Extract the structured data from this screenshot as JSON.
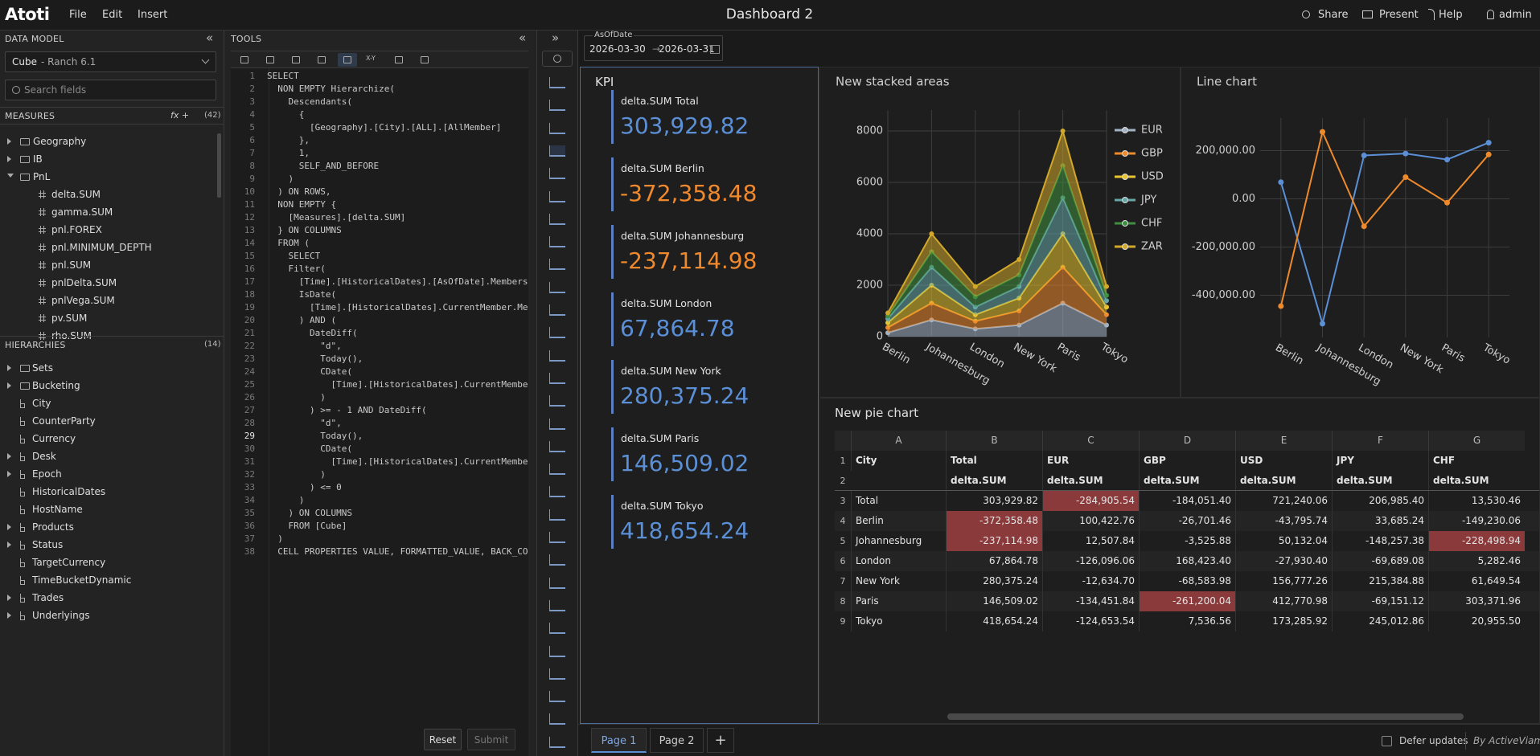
{
  "header": {
    "logo": "Atoti",
    "menu": [
      "File",
      "Edit",
      "Insert"
    ],
    "title": "Dashboard 2",
    "actions": [
      "Share",
      "Present",
      "Help",
      "admin"
    ]
  },
  "data_model": {
    "title": "DATA MODEL",
    "cube": "Cube",
    "cube_detail": "- Ranch 6.1",
    "search_placeholder": "Search fields",
    "measures_title": "MEASURES",
    "measures_fx": "fx +",
    "measures_count": "(42)",
    "measures": [
      {
        "label": "Geography",
        "kind": "folder",
        "level": 0,
        "caret": "closed"
      },
      {
        "label": "IB",
        "kind": "folder",
        "level": 0,
        "caret": "closed"
      },
      {
        "label": "PnL",
        "kind": "folder",
        "level": 0,
        "caret": "open"
      },
      {
        "label": "delta.SUM",
        "kind": "measure",
        "level": 1
      },
      {
        "label": "gamma.SUM",
        "kind": "measure",
        "level": 1
      },
      {
        "label": "pnl.FOREX",
        "kind": "measure",
        "level": 1
      },
      {
        "label": "pnl.MINIMUM_DEPTH",
        "kind": "measure",
        "level": 1
      },
      {
        "label": "pnl.SUM",
        "kind": "measure",
        "level": 1
      },
      {
        "label": "pnlDelta.SUM",
        "kind": "measure",
        "level": 1
      },
      {
        "label": "pnlVega.SUM",
        "kind": "measure",
        "level": 1
      },
      {
        "label": "pv.SUM",
        "kind": "measure",
        "level": 1
      },
      {
        "label": "rho.SUM",
        "kind": "measure",
        "level": 1
      }
    ],
    "hierarchies_title": "HIERARCHIES",
    "hierarchies_count": "(14)",
    "hierarchies": [
      {
        "label": "Sets",
        "kind": "folder",
        "caret": "closed"
      },
      {
        "label": "Bucketing",
        "kind": "folder",
        "caret": "closed"
      },
      {
        "label": "City",
        "kind": "hierarchy"
      },
      {
        "label": "CounterParty",
        "kind": "hierarchy"
      },
      {
        "label": "Currency",
        "kind": "hierarchy"
      },
      {
        "label": "Desk",
        "kind": "hierarchy",
        "caret": "closed"
      },
      {
        "label": "Epoch",
        "kind": "hierarchy",
        "caret": "closed"
      },
      {
        "label": "HistoricalDates",
        "kind": "hierarchy"
      },
      {
        "label": "HostName",
        "kind": "hierarchy"
      },
      {
        "label": "Products",
        "kind": "hierarchy",
        "caret": "closed"
      },
      {
        "label": "Status",
        "kind": "hierarchy",
        "caret": "closed"
      },
      {
        "label": "TargetCurrency",
        "kind": "hierarchy"
      },
      {
        "label": "TimeBucketDynamic",
        "kind": "hierarchy"
      },
      {
        "label": "Trades",
        "kind": "hierarchy",
        "caret": "closed"
      },
      {
        "label": "Underlyings",
        "kind": "hierarchy",
        "caret": "closed"
      }
    ]
  },
  "tools": {
    "title": "TOOLS",
    "toolbar_xy": "X-Y",
    "current_line": 29,
    "line_numbers": [
      1,
      2,
      3,
      4,
      5,
      6,
      7,
      8,
      9,
      10,
      11,
      12,
      13,
      14,
      15,
      16,
      17,
      18,
      19,
      20,
      21,
      22,
      23,
      24,
      25,
      26,
      27,
      28,
      29,
      30,
      31,
      32,
      33,
      34,
      35,
      36,
      37,
      38
    ],
    "code": [
      "SELECT",
      "  NON EMPTY Hierarchize(",
      "    Descendants(",
      "      {",
      "        [Geography].[City].[ALL].[AllMember]",
      "      },",
      "      1,",
      "      SELF_AND_BEFORE",
      "    )",
      "  ) ON ROWS,",
      "  NON EMPTY {",
      "    [Measures].[delta.SUM]",
      "  } ON COLUMNS",
      "  FROM (",
      "    SELECT",
      "    Filter(",
      "      [Time].[HistoricalDates].[AsOfDate].Members",
      "      IsDate(",
      "        [Time].[HistoricalDates].CurrentMember.Me",
      "      ) AND (",
      "        DateDiff(",
      "          \"d\",",
      "          Today(),",
      "          CDate(",
      "            [Time].[HistoricalDates].CurrentMembe",
      "          )",
      "        ) >= - 1 AND DateDiff(",
      "          \"d\",",
      "          Today(),",
      "          CDate(",
      "            [Time].[HistoricalDates].CurrentMembe",
      "          )",
      "        ) <= 0",
      "      )",
      "    ) ON COLUMNS",
      "    FROM [Cube]",
      "  )",
      "  CELL PROPERTIES VALUE, FORMATTED_VALUE, BACK_CO"
    ],
    "buttons": [
      "Reset",
      "Submit"
    ]
  },
  "filter": {
    "label": "AsOfDate",
    "from": "2026-03-30",
    "to": "2026-03-31"
  },
  "kpi": {
    "title": "KPI",
    "positive_color": "#5b8fd6",
    "negative_color": "#f0892e",
    "items": [
      {
        "label": "delta.SUM Total",
        "value": "303,929.82"
      },
      {
        "label": "delta.SUM Berlin",
        "value": "-372,358.48"
      },
      {
        "label": "delta.SUM Johannesburg",
        "value": "-237,114.98"
      },
      {
        "label": "delta.SUM London",
        "value": "67,864.78"
      },
      {
        "label": "delta.SUM New York",
        "value": "280,375.24"
      },
      {
        "label": "delta.SUM Paris",
        "value": "146,509.02"
      },
      {
        "label": "delta.SUM Tokyo",
        "value": "418,654.24"
      }
    ]
  },
  "chart_data": [
    {
      "type": "area",
      "stacked": true,
      "title": "New stacked areas",
      "categories": [
        "Berlin",
        "Johannesburg",
        "London",
        "New York",
        "Paris",
        "Tokyo"
      ],
      "series": [
        {
          "name": "EUR",
          "color": "#a3b3c6",
          "values": [
            150,
            650,
            300,
            450,
            1300,
            450
          ]
        },
        {
          "name": "GBP",
          "color": "#ee8a2c",
          "values": [
            200,
            650,
            300,
            550,
            1400,
            400
          ]
        },
        {
          "name": "USD",
          "color": "#e8c530",
          "values": [
            190,
            700,
            250,
            500,
            1300,
            300
          ]
        },
        {
          "name": "JPY",
          "color": "#66a7a7",
          "values": [
            160,
            700,
            300,
            450,
            1400,
            250
          ]
        },
        {
          "name": "CHF",
          "color": "#3f8f40",
          "values": [
            100,
            600,
            400,
            450,
            1250,
            200
          ]
        },
        {
          "name": "ZAR",
          "color": "#d2a82a",
          "values": [
            120,
            700,
            400,
            600,
            1350,
            350
          ]
        }
      ],
      "ylim": [
        0,
        8500
      ],
      "yticks": [
        0,
        2000,
        4000,
        6000,
        8000
      ],
      "grid": true,
      "legend": "right"
    },
    {
      "type": "line",
      "title": "Line chart",
      "categories": [
        "Berlin",
        "Johannesburg",
        "London",
        "New York",
        "Paris",
        "Tokyo"
      ],
      "series": [
        {
          "color": "#5b8fd6",
          "values": [
            69000,
            -518000,
            180000,
            188000,
            163000,
            233000
          ]
        },
        {
          "color": "#ee8a2c",
          "values": [
            -445000,
            278000,
            -114000,
            90000,
            -16000,
            184000
          ]
        }
      ],
      "ylim": [
        -575000,
        335000
      ],
      "yticks": [
        {
          "value": -400000,
          "label": "-400,000.00"
        },
        {
          "value": -200000,
          "label": "-200,000.00"
        },
        {
          "value": 0,
          "label": "0.00"
        },
        {
          "value": 200000,
          "label": "200,000.00"
        }
      ],
      "grid": true
    }
  ],
  "table": {
    "title": "New pie chart",
    "highlight_color": "#8b3a3c",
    "column_letters": [
      "A",
      "B",
      "C",
      "D",
      "E",
      "F",
      "G"
    ],
    "row_numbers": [
      1,
      2,
      3,
      4,
      5,
      6,
      7,
      8,
      9
    ],
    "header_row": [
      "City",
      "Total",
      "EUR",
      "GBP",
      "USD",
      "JPY",
      "CHF"
    ],
    "measure_row": [
      "delta.SUM",
      "delta.SUM",
      "delta.SUM",
      "delta.SUM",
      "delta.SUM",
      "delta.SUM"
    ],
    "rows": [
      [
        "Total",
        "303,929.82",
        {
          "text": "-284,905.54",
          "highlight": true
        },
        "-184,051.40",
        "721,240.06",
        "206,985.40",
        "13,530.46"
      ],
      [
        "Berlin",
        {
          "text": "-372,358.48",
          "highlight": true
        },
        "100,422.76",
        "-26,701.46",
        "-43,795.74",
        "33,685.24",
        "-149,230.06"
      ],
      [
        "Johannesburg",
        {
          "text": "-237,114.98",
          "highlight": true
        },
        "12,507.84",
        "-3,525.88",
        "50,132.04",
        "-148,257.38",
        {
          "text": "-228,498.94",
          "highlight": true
        }
      ],
      [
        "London",
        "67,864.78",
        "-126,096.06",
        "168,423.40",
        "-27,930.40",
        "-69,689.08",
        "5,282.46"
      ],
      [
        "New York",
        "280,375.24",
        "-12,634.70",
        "-68,583.98",
        "156,777.26",
        "215,384.88",
        "61,649.54"
      ],
      [
        "Paris",
        "146,509.02",
        "-134,451.84",
        {
          "text": "-261,200.04",
          "highlight": true
        },
        "412,770.98",
        "-69,151.12",
        "303,371.96"
      ],
      [
        "Tokyo",
        "418,654.24",
        "-124,653.54",
        "7,536.56",
        "173,285.92",
        "245,012.86",
        "20,955.50"
      ]
    ]
  },
  "footer": {
    "pages": [
      "Page 1",
      "Page 2"
    ],
    "add": "+",
    "defer": "Defer updates",
    "brand": "By ActiveViam"
  }
}
